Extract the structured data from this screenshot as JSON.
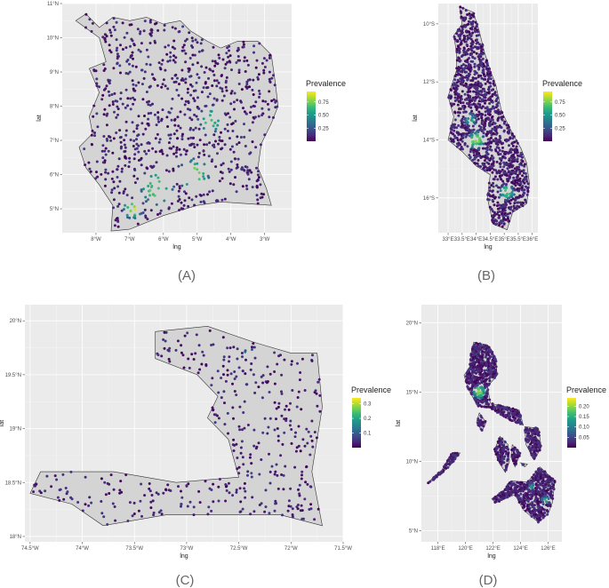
{
  "chart_data": [
    {
      "type": "scatter",
      "panel_label": "(A)",
      "xlabel": "lng",
      "ylabel": "lat",
      "x_ticks": [
        {
          "value": -8,
          "label": "8°W"
        },
        {
          "value": -7,
          "label": "7°W"
        },
        {
          "value": -6,
          "label": "6°W"
        },
        {
          "value": -5,
          "label": "5°W"
        },
        {
          "value": -4,
          "label": "4°W"
        },
        {
          "value": -3,
          "label": "3°W"
        }
      ],
      "y_ticks": [
        {
          "value": 5,
          "label": "5°N"
        },
        {
          "value": 6,
          "label": "6°N"
        },
        {
          "value": 7,
          "label": "7°N"
        },
        {
          "value": 8,
          "label": "8°N"
        },
        {
          "value": 9,
          "label": "9°N"
        },
        {
          "value": 10,
          "label": "10°N"
        },
        {
          "value": 11,
          "label": "11°N"
        }
      ],
      "xlim": [
        -9.0,
        -2.2
      ],
      "ylim": [
        4.3,
        11.0
      ],
      "grid": true,
      "legend": {
        "title": "Prevalence",
        "placement": "right",
        "ticks": [
          {
            "value": 0.25,
            "label": "0.25"
          },
          {
            "value": 0.5,
            "label": "0.50"
          },
          {
            "value": 0.75,
            "label": "0.75"
          }
        ],
        "range": [
          0,
          0.95
        ]
      },
      "boundary": [
        [
          -8.6,
          10.5
        ],
        [
          -8.3,
          10.7
        ],
        [
          -7.9,
          10.3
        ],
        [
          -7.5,
          10.6
        ],
        [
          -7.0,
          10.5
        ],
        [
          -6.5,
          10.6
        ],
        [
          -6.0,
          10.4
        ],
        [
          -5.5,
          10.5
        ],
        [
          -5.2,
          10.2
        ],
        [
          -4.7,
          9.9
        ],
        [
          -4.3,
          9.7
        ],
        [
          -3.8,
          9.9
        ],
        [
          -3.2,
          9.9
        ],
        [
          -2.8,
          9.5
        ],
        [
          -2.7,
          8.8
        ],
        [
          -2.6,
          8.0
        ],
        [
          -2.8,
          7.5
        ],
        [
          -3.1,
          6.9
        ],
        [
          -3.2,
          6.2
        ],
        [
          -2.95,
          5.6
        ],
        [
          -2.8,
          5.1
        ],
        [
          -3.5,
          5.15
        ],
        [
          -4.3,
          5.2
        ],
        [
          -5.0,
          5.1
        ],
        [
          -6.0,
          4.8
        ],
        [
          -7.0,
          4.4
        ],
        [
          -7.55,
          4.35
        ],
        [
          -7.5,
          5.1
        ],
        [
          -7.9,
          5.7
        ],
        [
          -8.3,
          6.2
        ],
        [
          -8.5,
          6.8
        ],
        [
          -8.1,
          7.2
        ],
        [
          -8.2,
          7.7
        ],
        [
          -7.9,
          8.4
        ],
        [
          -8.2,
          9.1
        ],
        [
          -7.7,
          9.3
        ],
        [
          -7.9,
          10.0
        ],
        [
          -8.6,
          10.5
        ]
      ],
      "hotspots": [
        {
          "x": -6.2,
          "y": 5.6,
          "r": 0.6,
          "v": 0.65
        },
        {
          "x": -5.1,
          "y": 6.0,
          "r": 0.55,
          "v": 0.75
        },
        {
          "x": -4.6,
          "y": 7.6,
          "r": 0.45,
          "v": 0.6
        },
        {
          "x": -6.9,
          "y": 5.0,
          "r": 0.35,
          "v": 0.8
        }
      ],
      "n_points": 900,
      "seed": 11
    },
    {
      "type": "scatter",
      "panel_label": "(B)",
      "xlabel": "lng",
      "ylabel": "lat",
      "x_ticks": [
        {
          "value": 33.0,
          "label": "33°E"
        },
        {
          "value": 33.5,
          "label": "33.5°E"
        },
        {
          "value": 34.0,
          "label": "34°E"
        },
        {
          "value": 34.5,
          "label": "34.5°E"
        },
        {
          "value": 35.0,
          "label": "35°E"
        },
        {
          "value": 35.5,
          "label": "35.5°E"
        },
        {
          "value": 36.0,
          "label": "36°E"
        }
      ],
      "y_ticks": [
        {
          "value": -10,
          "label": "10°S"
        },
        {
          "value": -12,
          "label": "12°S"
        },
        {
          "value": -14,
          "label": "14°S"
        },
        {
          "value": -16,
          "label": "16°S"
        }
      ],
      "xlim": [
        32.65,
        36.2
      ],
      "ylim": [
        -17.2,
        -9.3
      ],
      "grid": true,
      "legend": {
        "title": "Prevalence",
        "placement": "right",
        "ticks": [
          {
            "value": 0.25,
            "label": "0.25"
          },
          {
            "value": 0.5,
            "label": "0.50"
          },
          {
            "value": 0.75,
            "label": "0.75"
          }
        ],
        "range": [
          0,
          0.95
        ]
      },
      "boundary": [
        [
          33.4,
          -9.4
        ],
        [
          33.9,
          -9.6
        ],
        [
          34.1,
          -10.2
        ],
        [
          34.3,
          -11.0
        ],
        [
          34.5,
          -11.6
        ],
        [
          34.7,
          -12.1
        ],
        [
          34.9,
          -13.0
        ],
        [
          35.2,
          -13.6
        ],
        [
          35.6,
          -14.3
        ],
        [
          35.8,
          -14.8
        ],
        [
          35.9,
          -15.5
        ],
        [
          35.8,
          -16.2
        ],
        [
          35.3,
          -16.5
        ],
        [
          35.1,
          -17.1
        ],
        [
          34.6,
          -16.9
        ],
        [
          34.4,
          -16.0
        ],
        [
          34.5,
          -15.2
        ],
        [
          34.0,
          -14.9
        ],
        [
          33.5,
          -14.4
        ],
        [
          33.0,
          -14.0
        ],
        [
          33.2,
          -13.2
        ],
        [
          33.0,
          -12.5
        ],
        [
          33.3,
          -11.6
        ],
        [
          33.3,
          -11.0
        ],
        [
          33.2,
          -10.4
        ],
        [
          33.5,
          -10.0
        ],
        [
          33.4,
          -9.4
        ]
      ],
      "hotspots": [
        {
          "x": 34.0,
          "y": -14.0,
          "r": 0.35,
          "v": 0.7
        },
        {
          "x": 35.1,
          "y": -15.8,
          "r": 0.3,
          "v": 0.65
        },
        {
          "x": 33.8,
          "y": -13.3,
          "r": 0.25,
          "v": 0.5
        }
      ],
      "n_points": 1400,
      "seed": 23
    },
    {
      "type": "scatter",
      "panel_label": "(C)",
      "xlabel": "lng",
      "ylabel": "lat",
      "x_ticks": [
        {
          "value": -74.5,
          "label": "74.5°W"
        },
        {
          "value": -74.0,
          "label": "74°W"
        },
        {
          "value": -73.5,
          "label": "73.5°W"
        },
        {
          "value": -73.0,
          "label": "73°W"
        },
        {
          "value": -72.5,
          "label": "72.5°W"
        },
        {
          "value": -72.0,
          "label": "72°W"
        },
        {
          "value": -71.5,
          "label": "71.5°W"
        }
      ],
      "y_ticks": [
        {
          "value": 18.0,
          "label": "18°N"
        },
        {
          "value": 18.5,
          "label": "18.5°N"
        },
        {
          "value": 19.0,
          "label": "19°N"
        },
        {
          "value": 19.5,
          "label": "19.5°N"
        },
        {
          "value": 20.0,
          "label": "20°N"
        }
      ],
      "xlim": [
        -74.55,
        -71.5
      ],
      "ylim": [
        17.95,
        20.15
      ],
      "grid": true,
      "legend": {
        "title": "Prevalence",
        "placement": "right",
        "ticks": [
          {
            "value": 0.1,
            "label": "0.1"
          },
          {
            "value": 0.2,
            "label": "0.2"
          },
          {
            "value": 0.3,
            "label": "0.3"
          }
        ],
        "range": [
          0,
          0.34
        ]
      },
      "boundary": [
        [
          -73.3,
          19.9
        ],
        [
          -72.8,
          19.95
        ],
        [
          -72.35,
          19.8
        ],
        [
          -72.0,
          19.7
        ],
        [
          -71.75,
          19.7
        ],
        [
          -71.7,
          19.2
        ],
        [
          -71.8,
          18.6
        ],
        [
          -71.7,
          18.1
        ],
        [
          -72.1,
          18.2
        ],
        [
          -72.6,
          18.2
        ],
        [
          -73.2,
          18.2
        ],
        [
          -73.8,
          18.1
        ],
        [
          -74.1,
          18.3
        ],
        [
          -74.5,
          18.4
        ],
        [
          -74.4,
          18.6
        ],
        [
          -73.7,
          18.6
        ],
        [
          -73.1,
          18.5
        ],
        [
          -72.5,
          18.55
        ],
        [
          -72.6,
          18.9
        ],
        [
          -72.8,
          19.1
        ],
        [
          -72.7,
          19.3
        ],
        [
          -72.9,
          19.5
        ],
        [
          -73.3,
          19.65
        ],
        [
          -73.3,
          19.9
        ]
      ],
      "hotspots": [
        {
          "x": -72.35,
          "y": 18.55,
          "r": 0.08,
          "v": 0.06
        },
        {
          "x": -72.4,
          "y": 19.7,
          "r": 0.05,
          "v": 0.3
        }
      ],
      "n_points": 420,
      "seed": 37
    },
    {
      "type": "scatter",
      "panel_label": "(D)",
      "xlabel": "lng",
      "ylabel": "lat",
      "x_ticks": [
        {
          "value": 118,
          "label": "118°E"
        },
        {
          "value": 120,
          "label": "120°E"
        },
        {
          "value": 122,
          "label": "122°E"
        },
        {
          "value": 124,
          "label": "124°E"
        },
        {
          "value": 126,
          "label": "126°E"
        }
      ],
      "y_ticks": [
        {
          "value": 5,
          "label": "5°N"
        },
        {
          "value": 10,
          "label": "10°N"
        },
        {
          "value": 15,
          "label": "15°N"
        },
        {
          "value": 20,
          "label": "20°N"
        }
      ],
      "xlim": [
        116.8,
        127.0
      ],
      "ylim": [
        4.2,
        21.3
      ],
      "grid": true,
      "legend": {
        "title": "Prevalence",
        "placement": "right",
        "ticks": [
          {
            "value": 0.05,
            "label": "0.05"
          },
          {
            "value": 0.1,
            "label": "0.10"
          },
          {
            "value": 0.15,
            "label": "0.15"
          },
          {
            "value": 0.2,
            "label": "0.20"
          }
        ],
        "range": [
          0,
          0.24
        ]
      },
      "boundary": [
        [
          120.6,
          18.6
        ],
        [
          121.6,
          18.4
        ],
        [
          122.2,
          17.5
        ],
        [
          122.3,
          16.2
        ],
        [
          121.6,
          15.4
        ],
        [
          121.8,
          14.2
        ],
        [
          122.6,
          14.0
        ],
        [
          123.9,
          13.7
        ],
        [
          124.2,
          12.6
        ],
        [
          123.4,
          12.9
        ],
        [
          122.8,
          13.2
        ],
        [
          121.9,
          13.8
        ],
        [
          120.9,
          14.0
        ],
        [
          120.6,
          14.5
        ],
        [
          120.2,
          15.2
        ],
        [
          119.9,
          16.2
        ],
        [
          120.3,
          16.8
        ],
        [
          120.4,
          17.8
        ],
        [
          120.6,
          18.6
        ]
      ],
      "islands": [
        [
          [
            124.3,
            12.5
          ],
          [
            125.3,
            12.4
          ],
          [
            125.5,
            11.0
          ],
          [
            125.0,
            10.1
          ],
          [
            124.4,
            11.2
          ],
          [
            124.3,
            12.5
          ]
        ],
        [
          [
            122.5,
            11.8
          ],
          [
            123.1,
            11.2
          ],
          [
            123.2,
            10.0
          ],
          [
            122.9,
            9.2
          ],
          [
            122.4,
            10.0
          ],
          [
            122.1,
            10.8
          ],
          [
            122.5,
            11.8
          ]
        ],
        [
          [
            123.4,
            11.2
          ],
          [
            124.0,
            10.6
          ],
          [
            123.6,
            9.6
          ],
          [
            123.3,
            10.3
          ],
          [
            123.4,
            11.2
          ]
        ],
        [
          [
            121.0,
            13.5
          ],
          [
            121.5,
            12.8
          ],
          [
            121.2,
            12.2
          ],
          [
            120.8,
            12.8
          ],
          [
            121.0,
            13.5
          ]
        ],
        [
          [
            119.0,
            10.6
          ],
          [
            119.6,
            10.6
          ],
          [
            118.8,
            9.6
          ],
          [
            117.6,
            8.6
          ],
          [
            117.2,
            8.4
          ],
          [
            118.3,
            9.4
          ],
          [
            119.0,
            10.6
          ]
        ],
        [
          [
            123.3,
            8.6
          ],
          [
            124.5,
            8.5
          ],
          [
            125.4,
            9.6
          ],
          [
            126.5,
            8.6
          ],
          [
            126.3,
            7.0
          ],
          [
            126.0,
            6.2
          ],
          [
            125.3,
            5.6
          ],
          [
            124.2,
            6.5
          ],
          [
            123.6,
            7.6
          ],
          [
            122.2,
            7.0
          ],
          [
            121.9,
            7.3
          ],
          [
            122.8,
            7.9
          ],
          [
            123.3,
            8.6
          ]
        ],
        [
          [
            124.0,
            9.9
          ],
          [
            124.5,
            9.8
          ],
          [
            124.3,
            9.6
          ],
          [
            124.0,
            9.9
          ]
        ]
      ],
      "hotspots": [
        {
          "x": 121.0,
          "y": 15.0,
          "r": 0.55,
          "v": 0.18
        },
        {
          "x": 125.8,
          "y": 7.2,
          "r": 0.35,
          "v": 0.12
        },
        {
          "x": 124.8,
          "y": 8.2,
          "r": 0.3,
          "v": 0.1
        }
      ],
      "n_points": 1600,
      "seed": 53
    }
  ],
  "colors": {
    "panel_background": "#ebebeb",
    "grid": "#ffffff",
    "land": "#d4d4d4",
    "coast": "#333333",
    "viridis": [
      "#440154",
      "#482878",
      "#3e4989",
      "#31688e",
      "#26828e",
      "#1f9e89",
      "#35b779",
      "#6ece58",
      "#b5de2b",
      "#fde725"
    ]
  }
}
